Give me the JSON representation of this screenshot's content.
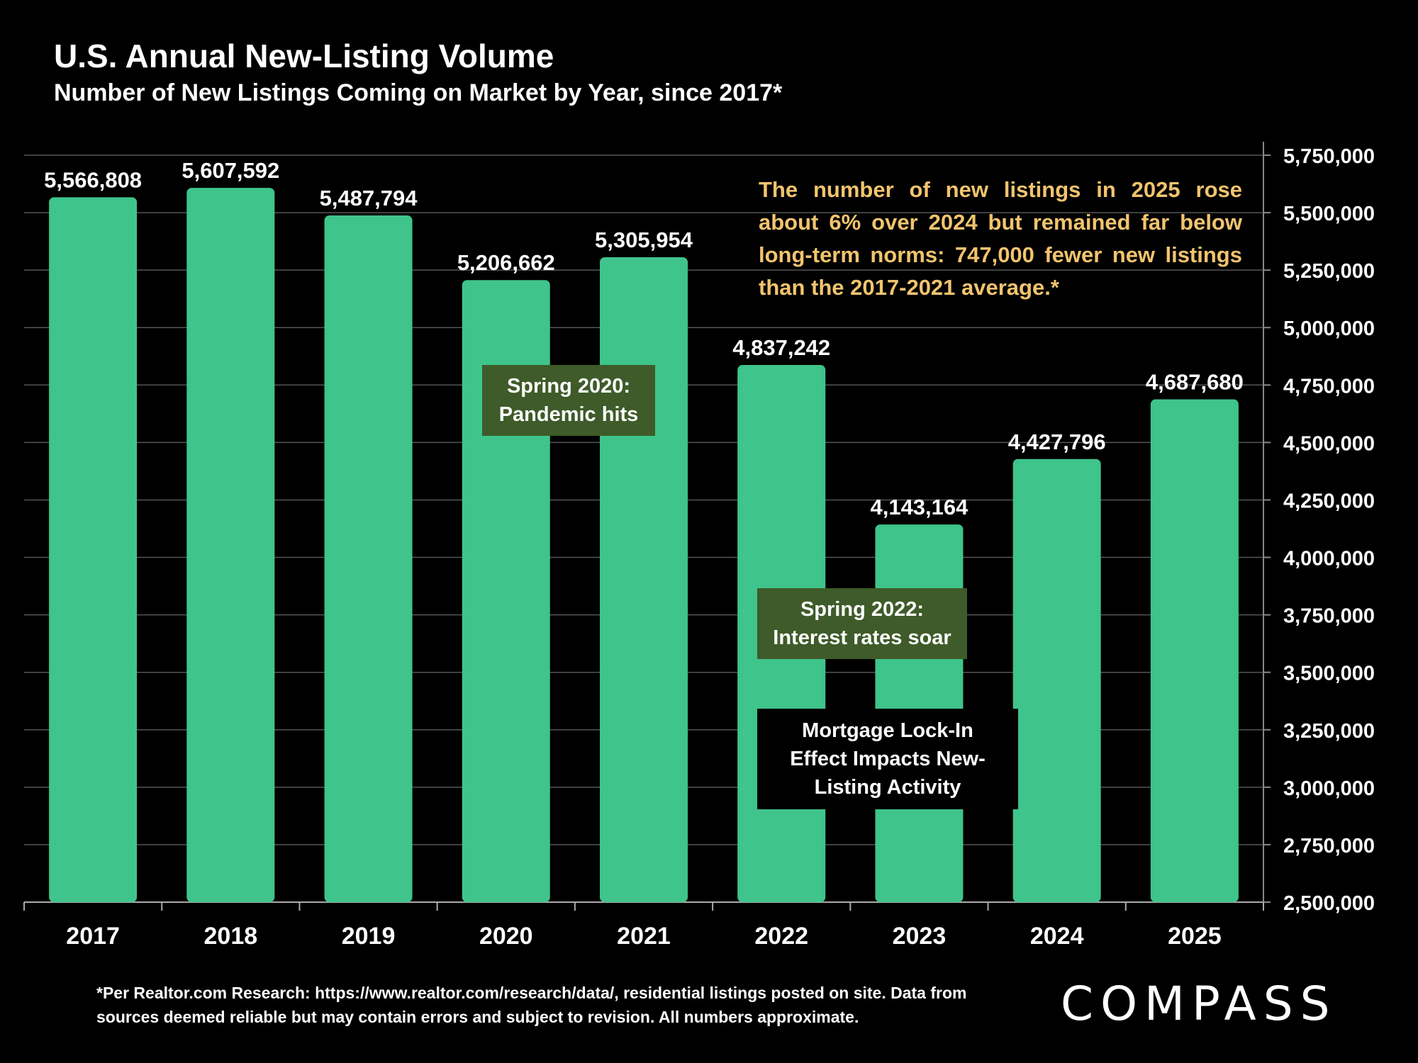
{
  "title": "U.S. Annual New-Listing Volume",
  "subtitle": "Number of New Listings Coming on Market by Year, since 2017*",
  "note": "The number of new listings in 2025 rose about 6% over 2024 but remained far below long-term norms:  747,000 fewer new listings than the 2017-2021 average.*",
  "callouts": {
    "pandemic": "Spring 2020: Pandemic hits",
    "rates": "Spring 2022: Interest rates soar",
    "lockin": "Mortgage Lock-In Effect Impacts New-Listing Activity"
  },
  "footnote": "*Per Realtor.com Research:  https://www.realtor.com/research/data/, residential listings posted on site. Data from sources deemed reliable but may contain errors and subject to revision. All numbers approximate.",
  "logo": "COMPASS",
  "colors": {
    "bar": "#3fc48b",
    "note": "#f2c46e",
    "callout_bg": "#3e5b29",
    "grid": "#555555"
  },
  "chart_data": {
    "type": "bar",
    "categories": [
      "2017",
      "2018",
      "2019",
      "2020",
      "2021",
      "2022",
      "2023",
      "2024",
      "2025"
    ],
    "values": [
      5566808,
      5607592,
      5487794,
      5206662,
      5305954,
      4837242,
      4143164,
      4427796,
      4687680
    ],
    "value_labels": [
      "5,566,808",
      "5,607,592",
      "5,487,794",
      "5,206,662",
      "5,305,954",
      "4,837,242",
      "4,143,164",
      "4,427,796",
      "4,687,680"
    ],
    "ylim": [
      2500000,
      5750000
    ],
    "y_ticks": [
      "2,500,000",
      "2,750,000",
      "3,000,000",
      "3,250,000",
      "3,500,000",
      "3,750,000",
      "4,000,000",
      "4,250,000",
      "4,500,000",
      "4,750,000",
      "5,000,000",
      "5,250,000",
      "5,500,000",
      "5,750,000"
    ],
    "y_axis_side": "right",
    "grid": true,
    "title": "U.S. Annual New-Listing Volume"
  }
}
